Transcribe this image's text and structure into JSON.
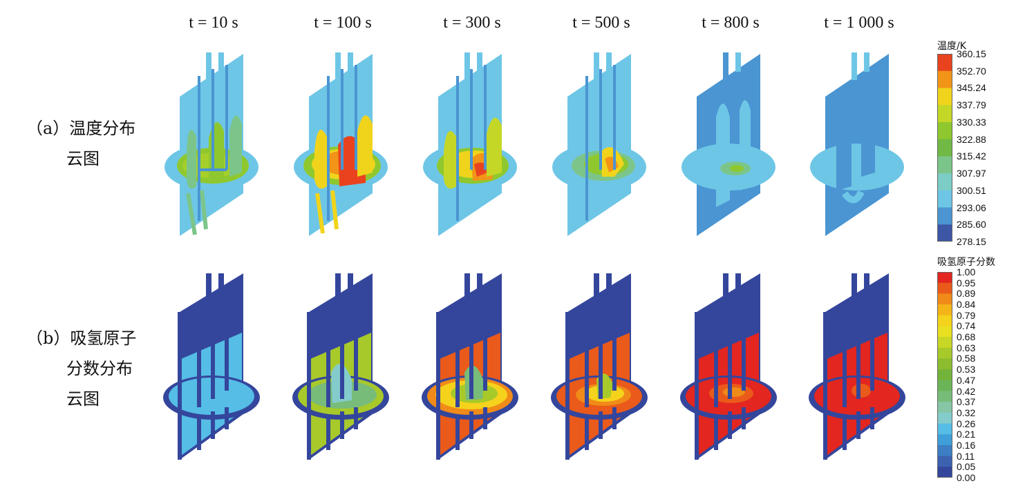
{
  "times": [
    "t = 10 s",
    "t = 100 s",
    "t = 300 s",
    "t = 500 s",
    "t = 800 s",
    "t = 1 000 s"
  ],
  "rows": {
    "a": {
      "label_line1": "（a）温度分布",
      "label_line2": "云图"
    },
    "b": {
      "label_line1": "（b）吸氢原子",
      "label_line2": "分数分布",
      "label_line3": "云图"
    }
  },
  "colorbar_temp": {
    "title": "温度/K",
    "ticks": [
      "360.15",
      "352.70",
      "345.24",
      "337.79",
      "330.33",
      "322.88",
      "315.42",
      "307.97",
      "300.51",
      "293.06",
      "285.60",
      "278.15"
    ],
    "colors": [
      "#e8431e",
      "#f29418",
      "#f0d41c",
      "#c5d726",
      "#8fc82e",
      "#6fb944",
      "#7cc58a",
      "#7ccdc5",
      "#6ec6e6",
      "#4a95d2",
      "#3d56a6"
    ]
  },
  "colorbar_h": {
    "title": "吸氢原子分数",
    "ticks": [
      "1.00",
      "0.95",
      "0.89",
      "0.84",
      "0.79",
      "0.74",
      "0.68",
      "0.63",
      "0.58",
      "0.53",
      "0.47",
      "0.42",
      "0.37",
      "0.32",
      "0.26",
      "0.21",
      "0.16",
      "0.11",
      "0.05",
      "0.00"
    ],
    "colors": [
      "#e3261f",
      "#ea5a1a",
      "#f08a18",
      "#f4b418",
      "#f5d21c",
      "#e8e020",
      "#c8d626",
      "#a8c92a",
      "#8cbd2e",
      "#74b33a",
      "#6cb458",
      "#78bc7a",
      "#86c6a6",
      "#84cbcc",
      "#55bde6",
      "#3f9fd8",
      "#3d7ec4",
      "#3d62b0",
      "#34469c"
    ]
  }
}
